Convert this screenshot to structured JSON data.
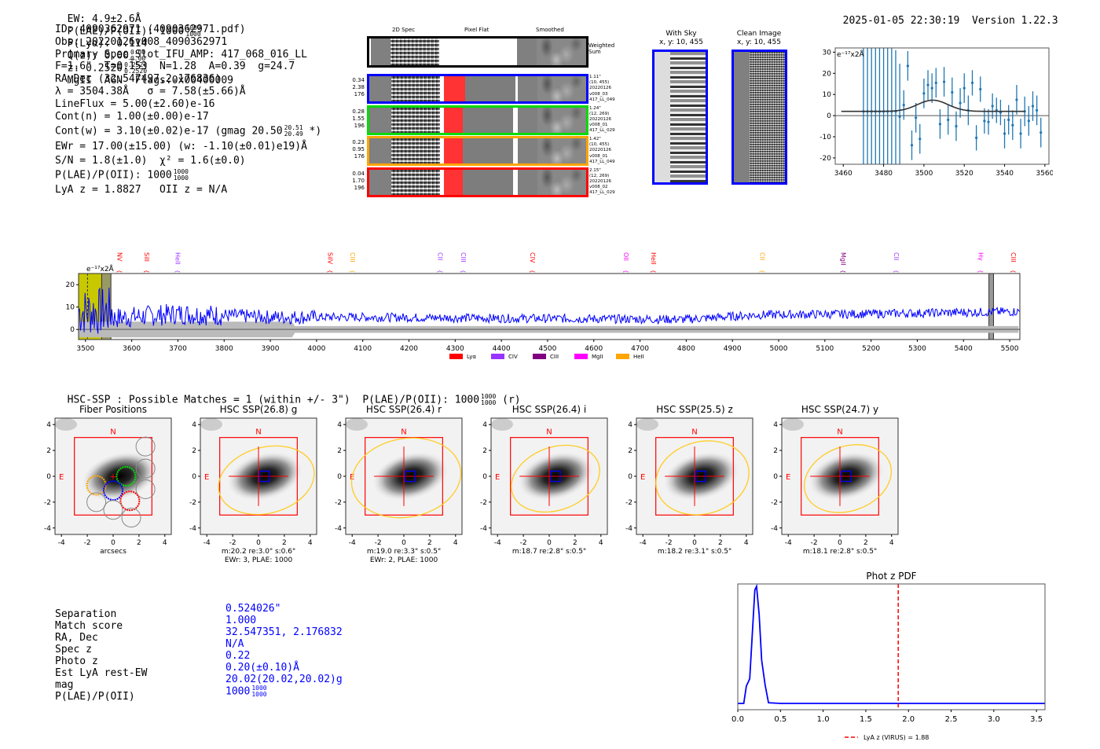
{
  "header": {
    "ew": "EW: 4.9±2.6Å",
    "plae_label": "P(LAE)/P(OII): 1000",
    "plae_hi": "1000",
    "plae_lo": "1000",
    "plya": "P(Lyα): 0.114",
    "qz_label": "Q(z): 0.00",
    "qz_hi": "0.00",
    "qz_lo": "0.00",
    "z_label": "z: 0.2520",
    "z_hi": "0.2520",
    "z_lo": "0.2520",
    "tags": "MgII  AGN  Flags:0x00400009",
    "timestamp": "2025-01-05 22:30:19",
    "version": "Version 1.22.3"
  },
  "info": {
    "id": "ID: 4090362971 (4090362971.pdf)",
    "obs": "Obs: 20220126v008_4090362971",
    "primary": "Primary Spec_Slot_IFU_AMP: 417_068_016_LL",
    "params": "F=1.6\"  T=0.153  N=1.28  A=0.39  g=24.7",
    "radec": "RA,Dec (32.547497,2.176836)",
    "lambda": "λ = 3504.38Å   σ = 7.58(±5.66)Å",
    "lineflux": "LineFlux = 5.00(±2.60)e-16",
    "contn": "Cont(n) = 1.00(±0.00)e-17",
    "contw": "Cont(w) = 3.10(±0.02)e-17 (gmag 20.50",
    "contw_hi": "20.51",
    "contw_lo": "20.49",
    "contw_end": "*)",
    "ewr": "EWr = 17.00(±15.00) (w: -1.10(±0.01)e19)Å",
    "sn": "S/N = 1.8(±1.0)  χ² = 1.6(±0.0)",
    "plae": "P(LAE)/P(OII): 1000",
    "plae_hi": "1000",
    "plae_lo": "1000",
    "lyaz": "LyA z = 1.8827   OII z = N/A"
  },
  "cutouts": {
    "col_headers": [
      "2D Spec",
      "Pixel Flat",
      "Smoothed"
    ],
    "weighted_label": "Weighted Sum",
    "rows": [
      {
        "color": "#0000ff",
        "left": [
          "0.34",
          "2.38",
          "176"
        ],
        "right": [
          "1.11\"",
          "(10, 455)",
          "20220126",
          "v008_03",
          "417_LL_049"
        ]
      },
      {
        "color": "#00dd00",
        "left": [
          "0.28",
          "1.55",
          "196"
        ],
        "right": [
          "1.24\"",
          "(12, 269)",
          "20220126",
          "v008_01",
          "417_LL_029"
        ]
      },
      {
        "color": "#ffa500",
        "left": [
          "0.23",
          "0.95",
          "176"
        ],
        "right": [
          "1.42\"",
          "(10, 455)",
          "20220126",
          "v008_01",
          "417_LL_049"
        ]
      },
      {
        "color": "#ff0000",
        "left": [
          "0.04",
          "1.70",
          "196"
        ],
        "right": [
          "2.15\"",
          "(12, 269)",
          "20220126",
          "v008_02",
          "417_LL_029"
        ]
      }
    ],
    "with_sky_title": "With Sky",
    "with_sky_xy": "x, y: 10, 455",
    "clean_title": "Clean Image",
    "clean_xy": "x, y: 10, 455"
  },
  "chart_data": [
    {
      "type": "scatter",
      "name": "line-fit-zoom",
      "unit_label": "e⁻¹⁷x2Å",
      "xlim": [
        3456,
        3562
      ],
      "ylim": [
        -23,
        32
      ],
      "xticks": [
        3460,
        3480,
        3500,
        3520,
        3540,
        3560
      ],
      "yticks": [
        -20,
        -10,
        0,
        10,
        20,
        30
      ],
      "points": [
        {
          "x": 3470,
          "y": 2,
          "err": 40
        },
        {
          "x": 3472,
          "y": 2,
          "err": 40
        },
        {
          "x": 3474,
          "y": 2,
          "err": 40
        },
        {
          "x": 3476,
          "y": 2,
          "err": 40
        },
        {
          "x": 3478,
          "y": 2,
          "err": 40
        },
        {
          "x": 3480,
          "y": 2,
          "err": 40
        },
        {
          "x": 3482,
          "y": 2,
          "err": 40
        },
        {
          "x": 3484,
          "y": 2,
          "err": 30
        },
        {
          "x": 3486,
          "y": 2,
          "err": 29
        },
        {
          "x": 3488,
          "y": -0.5,
          "err": 25
        },
        {
          "x": 3490,
          "y": 5,
          "err": 7
        },
        {
          "x": 3492,
          "y": 23.5,
          "err": 7
        },
        {
          "x": 3494,
          "y": -14,
          "err": 7
        },
        {
          "x": 3496,
          "y": -1,
          "err": 7
        },
        {
          "x": 3498,
          "y": -11,
          "err": 7
        },
        {
          "x": 3500,
          "y": 10.5,
          "err": 7
        },
        {
          "x": 3502,
          "y": 14.5,
          "err": 7
        },
        {
          "x": 3504,
          "y": 13,
          "err": 7
        },
        {
          "x": 3506,
          "y": 15.5,
          "err": 7
        },
        {
          "x": 3508,
          "y": -4,
          "err": 7
        },
        {
          "x": 3510,
          "y": 16,
          "err": 7
        },
        {
          "x": 3512,
          "y": -2,
          "err": 7
        },
        {
          "x": 3514,
          "y": 11,
          "err": 7
        },
        {
          "x": 3516,
          "y": -5,
          "err": 7
        },
        {
          "x": 3518,
          "y": 6,
          "err": 7
        },
        {
          "x": 3520,
          "y": 13,
          "err": 7
        },
        {
          "x": 3522,
          "y": 2.5,
          "err": 7
        },
        {
          "x": 3524,
          "y": 15.5,
          "err": 6
        },
        {
          "x": 3526,
          "y": -10.5,
          "err": 6
        },
        {
          "x": 3528,
          "y": 12.5,
          "err": 6
        },
        {
          "x": 3530,
          "y": -2.5,
          "err": 6
        },
        {
          "x": 3532,
          "y": -3,
          "err": 6
        },
        {
          "x": 3534,
          "y": 4.5,
          "err": 6
        },
        {
          "x": 3536,
          "y": 2.5,
          "err": 6
        },
        {
          "x": 3538,
          "y": 1.5,
          "err": 6
        },
        {
          "x": 3540,
          "y": -8.5,
          "err": 7
        },
        {
          "x": 3542,
          "y": -2,
          "err": 7
        },
        {
          "x": 3544,
          "y": -4.5,
          "err": 7
        },
        {
          "x": 3546,
          "y": 7.5,
          "err": 7
        },
        {
          "x": 3548,
          "y": -8.5,
          "err": 7
        },
        {
          "x": 3550,
          "y": 2,
          "err": 7
        },
        {
          "x": 3552,
          "y": -2.5,
          "err": 7
        },
        {
          "x": 3554,
          "y": 4.5,
          "err": 7
        },
        {
          "x": 3556,
          "y": 2.5,
          "err": 7
        },
        {
          "x": 3558,
          "y": -8,
          "err": 7
        }
      ],
      "fit": {
        "baseline": 2,
        "amplitude": 5.3,
        "center": 3504.38,
        "sigma": 7.58,
        "xrange": [
          3459,
          3550
        ]
      }
    },
    {
      "type": "line",
      "name": "full-spectrum",
      "unit_label": "e⁻¹⁷x2Å",
      "xlim": [
        3485,
        5522
      ],
      "ylim": [
        -4.5,
        25
      ],
      "xticks": [
        3500,
        3600,
        3700,
        3800,
        3900,
        4000,
        4100,
        4200,
        4300,
        4400,
        4500,
        4600,
        4700,
        4800,
        4900,
        5000,
        5100,
        5200,
        5300,
        5400,
        5500
      ],
      "yticks": [
        0,
        10,
        20
      ],
      "highlight_region": [
        3485,
        3535
      ],
      "hatched_region": [
        3535,
        3555
      ],
      "hatched_region2": [
        5455,
        5465
      ],
      "line_center": 3504.38,
      "emission_lines": [
        {
          "name": "NV",
          "wave": 3574,
          "color": "#ff0000"
        },
        {
          "name": "SiII",
          "wave": 3633,
          "color": "#ff0000"
        },
        {
          "name": "HeII",
          "wave": 3700,
          "color": "#9933ff"
        },
        {
          "name": "SiIV",
          "wave": 4030,
          "color": "#ff0000"
        },
        {
          "name": "CIII",
          "wave": 4078,
          "color": "#ffa500"
        },
        {
          "name": "CII",
          "wave": 4268,
          "color": "#9933ff"
        },
        {
          "name": "CIII",
          "wave": 4318,
          "color": "#9933ff"
        },
        {
          "name": "CIV",
          "wave": 4468,
          "color": "#ff0000"
        },
        {
          "name": "OII",
          "wave": 4670,
          "color": "#ff00ff"
        },
        {
          "name": "HeII",
          "wave": 4730,
          "color": "#ff0000"
        },
        {
          "name": "CII",
          "wave": 4965,
          "color": "#ffa500"
        },
        {
          "name": "MgII",
          "wave": 5140,
          "color": "#800080"
        },
        {
          "name": "CII",
          "wave": 5255,
          "color": "#9933ff"
        },
        {
          "name": "Hγ",
          "wave": 5438,
          "color": "#ff00ff"
        },
        {
          "name": "CIII",
          "wave": 5508,
          "color": "#ff0000"
        }
      ],
      "legend": [
        {
          "label": "Lyα",
          "color": "#ff0000"
        },
        {
          "label": "CIV",
          "color": "#9933ff"
        },
        {
          "label": "CIII",
          "color": "#800080"
        },
        {
          "label": "MgII",
          "color": "#ff00ff"
        },
        {
          "label": "HeII",
          "color": "#ffa500"
        }
      ],
      "continuum_trend": [
        [
          3560,
          5
        ],
        [
          3700,
          7
        ],
        [
          3900,
          5.5
        ],
        [
          4100,
          5.5
        ],
        [
          4400,
          5
        ],
        [
          4800,
          4.5
        ],
        [
          4950,
          6.5
        ],
        [
          5200,
          7
        ],
        [
          5520,
          8
        ]
      ]
    },
    {
      "type": "line",
      "name": "phot-z-pdf",
      "title": "Phot z PDF",
      "xlim": [
        0,
        3.6
      ],
      "xticks": [
        0.0,
        0.5,
        1.0,
        1.5,
        2.0,
        2.5,
        3.0,
        3.5
      ],
      "x": [
        0.0,
        0.07,
        0.1,
        0.14,
        0.2,
        0.22,
        0.25,
        0.28,
        0.32,
        0.36,
        0.5,
        1.0,
        3.6
      ],
      "y": [
        0.0,
        0.0,
        0.14,
        0.2,
        0.92,
        0.95,
        0.72,
        0.35,
        0.15,
        0.005,
        0.0,
        0.0,
        0.0
      ],
      "vline": {
        "x": 1.88,
        "label": "LyA z (VIRUS) = 1.88",
        "color": "#ff0000"
      }
    }
  ],
  "hsc": {
    "summary": "HSC-SSP : Possible Matches = 1 (within +/- 3\")  P(LAE)/P(OII): 1000",
    "summary_hi": "1000",
    "summary_lo": "1000",
    "summary_end": "(r)",
    "panels": [
      {
        "title": "Fiber Positions",
        "xlabel": "arcsecs",
        "caption1": "",
        "caption2": ""
      },
      {
        "title": "HSC SSP(26.8) g",
        "caption1": "m:20.2  re:3.0\"  s:0.6\"",
        "caption2": "EWr: 3, PLAE: 1000"
      },
      {
        "title": "HSC SSP(26.4) r",
        "caption1": "m:19.0  re:3.3\"  s:0.5\"",
        "caption2": "EWr: 2, PLAE: 1000"
      },
      {
        "title": "HSC SSP(26.4) i",
        "caption1": "m:18.7  re:2.8\"  s:0.5\"",
        "caption2": ""
      },
      {
        "title": "HSC SSP(25.5) z",
        "caption1": "m:18.2  re:3.1\"  s:0.5\"",
        "caption2": ""
      },
      {
        "title": "HSC SSP(24.7) y",
        "caption1": "m:18.1  re:2.8\"  s:0.5\"",
        "caption2": ""
      }
    ],
    "ticks": [
      "-4",
      "-2",
      "0",
      "2",
      "4"
    ],
    "north": "N",
    "east": "E"
  },
  "match_table": {
    "keys": [
      "Separation",
      "Match score",
      "RA, Dec",
      "Spec z",
      "Photo z",
      "Est LyA rest-EW",
      "mag",
      "P(LAE)/P(OII)"
    ],
    "values": [
      "0.524026\"",
      "1.000",
      "32.547351, 2.176832",
      "N/A",
      "0.22",
      "0.20(±0.10)Å",
      "20.02(20.02,20.02)g",
      "1000"
    ],
    "plae_hi": "1000",
    "plae_lo": "1000"
  }
}
